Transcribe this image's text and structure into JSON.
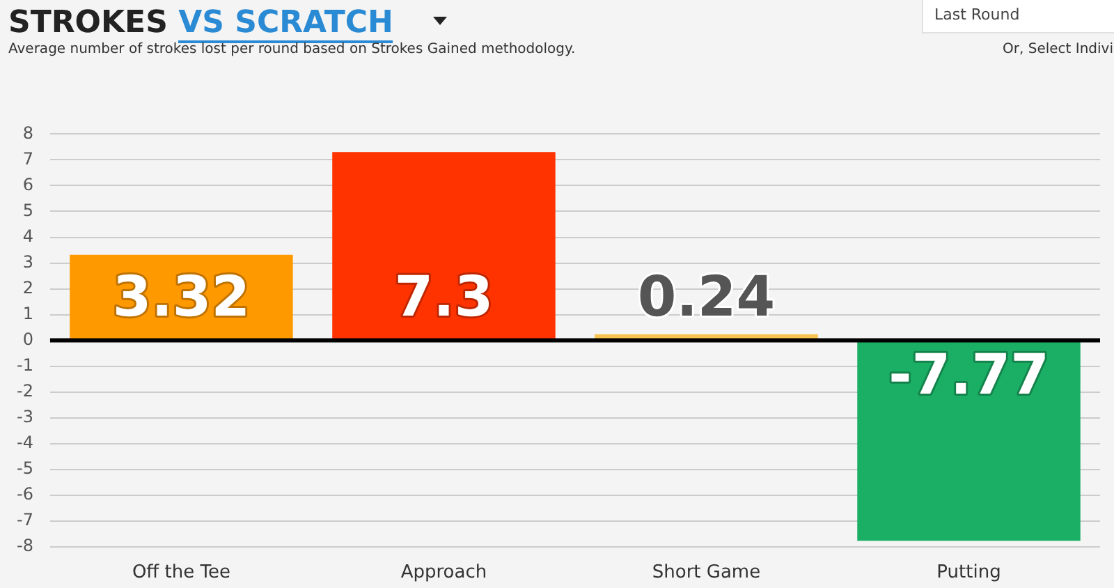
{
  "chart_data": {
    "type": "bar",
    "title": "STROKES VS SCRATCH",
    "subtitle": "Average number of strokes lost per round based on Strokes Gained methodology.",
    "annotations": [
      "Last Round",
      "Or, Select Indivi"
    ],
    "categories": [
      "Off the Tee",
      "Approach",
      "Short Game",
      "Putting"
    ],
    "values": [
      3.32,
      7.3,
      0.24,
      -7.77
    ],
    "colors": [
      "#ff9900",
      "#ff3300",
      "#f7c34e",
      "#1aaf64"
    ],
    "ylim": [
      -8,
      8
    ],
    "yticks": [
      -8,
      -7,
      -6,
      -5,
      -4,
      -3,
      -2,
      -1,
      0,
      1,
      2,
      3,
      4,
      5,
      6,
      7,
      8
    ],
    "grid": "y",
    "data_labels": true,
    "legend": false
  }
}
